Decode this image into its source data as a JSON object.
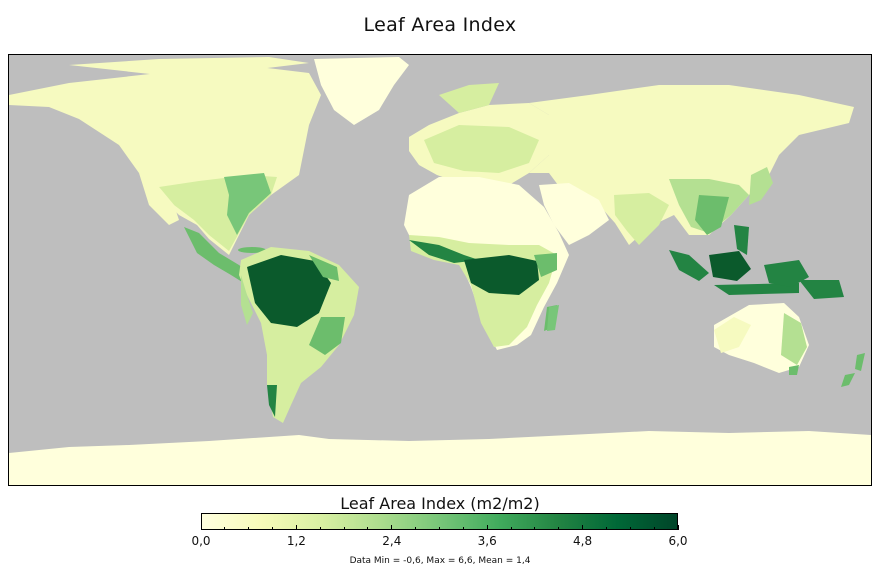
{
  "title": "Leaf Area Index",
  "colorbar": {
    "title": "Leaf Area Index (m2/m2)",
    "min": 0.0,
    "max": 6.0,
    "tick_labels": [
      "0,0",
      "1,2",
      "2,4",
      "3,6",
      "4,8",
      "6,0"
    ],
    "tick_values": [
      0.0,
      1.2,
      2.4,
      3.6,
      4.8,
      6.0
    ],
    "colors": [
      "#ffffdf",
      "#f7fbb9",
      "#d9f0a3",
      "#addd8e",
      "#78c679",
      "#41ab5d",
      "#238443",
      "#006837",
      "#004529"
    ]
  },
  "stats": "Data Min = -0,6, Max = 6,6, Mean = 1,4",
  "colors": {
    "ocean": "#bebebe",
    "desert": "#ffffdc",
    "sparse": "#f6fac0",
    "grass": "#d6eea0",
    "shrub": "#b4e092",
    "forest": "#6cbd6c",
    "rainforest": "#0b5a2c"
  }
}
